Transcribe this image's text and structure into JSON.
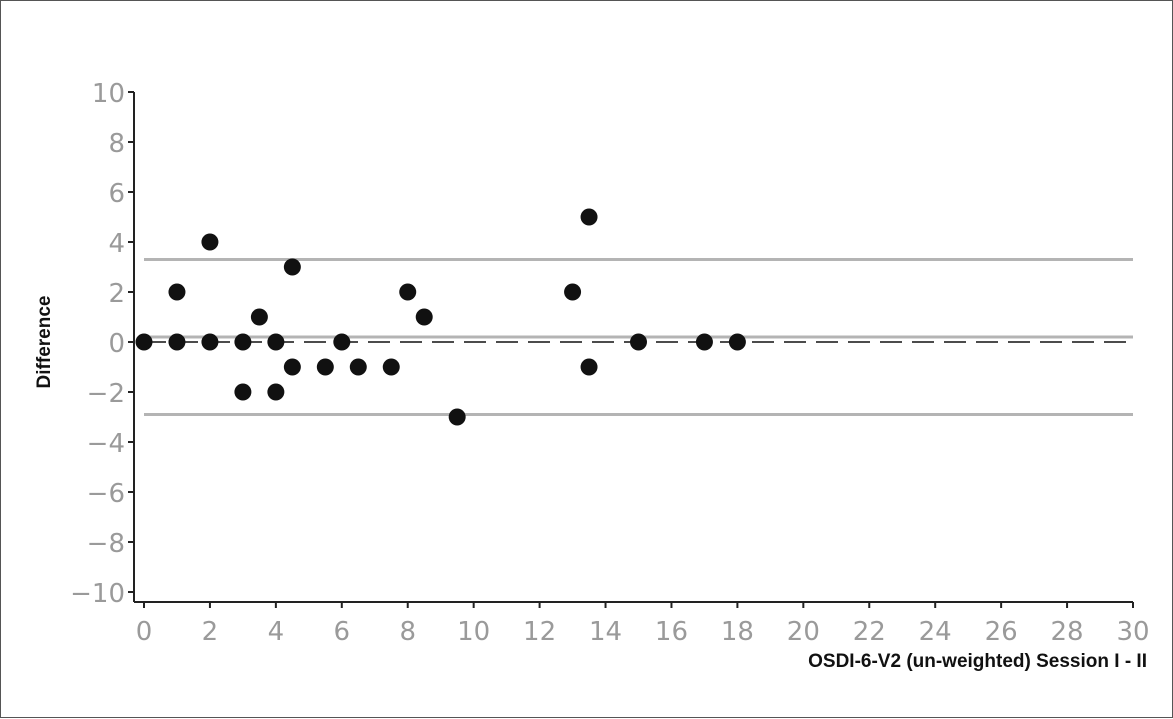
{
  "chart_data": {
    "type": "scatter",
    "title": "",
    "xlabel": "OSDI-6-V2 (un-weighted) Session I - II",
    "ylabel": "Difference",
    "xlim": [
      0,
      30
    ],
    "ylim": [
      -10,
      10
    ],
    "x_ticks": [
      0,
      2,
      4,
      6,
      8,
      10,
      12,
      14,
      16,
      18,
      20,
      22,
      24,
      26,
      28,
      30
    ],
    "y_ticks": [
      10,
      8,
      6,
      4,
      2,
      0,
      -2,
      -4,
      -6,
      -8,
      -10
    ],
    "grid": false,
    "colors": {
      "points": "#111111",
      "reference_lines": "#b4b4b4",
      "zero_line": "#111111",
      "axis": "#222222",
      "tick_labels": "#9a9a9a"
    },
    "points": [
      {
        "x": 0,
        "y": 0
      },
      {
        "x": 1,
        "y": 2
      },
      {
        "x": 1,
        "y": 0
      },
      {
        "x": 2,
        "y": 4
      },
      {
        "x": 2,
        "y": 0
      },
      {
        "x": 3,
        "y": 0
      },
      {
        "x": 3,
        "y": -2
      },
      {
        "x": 3.5,
        "y": 1
      },
      {
        "x": 4,
        "y": 0
      },
      {
        "x": 4,
        "y": -2
      },
      {
        "x": 4.5,
        "y": 3
      },
      {
        "x": 4.5,
        "y": -1
      },
      {
        "x": 5.5,
        "y": -1
      },
      {
        "x": 6,
        "y": 0
      },
      {
        "x": 6.5,
        "y": -1
      },
      {
        "x": 7.5,
        "y": -1
      },
      {
        "x": 8,
        "y": 2
      },
      {
        "x": 8.5,
        "y": 1
      },
      {
        "x": 9.5,
        "y": -3
      },
      {
        "x": 13,
        "y": 2
      },
      {
        "x": 13.5,
        "y": 5
      },
      {
        "x": 13.5,
        "y": -1
      },
      {
        "x": 15,
        "y": 0
      },
      {
        "x": 17,
        "y": 0
      },
      {
        "x": 18,
        "y": 0
      }
    ],
    "reference_lines": [
      {
        "type": "upper-limit",
        "y": 3.3,
        "style": "solid"
      },
      {
        "type": "mean",
        "y": 0.2,
        "style": "solid"
      },
      {
        "type": "lower-limit",
        "y": -2.9,
        "style": "solid"
      },
      {
        "type": "zero",
        "y": 0,
        "style": "dashed"
      }
    ]
  }
}
